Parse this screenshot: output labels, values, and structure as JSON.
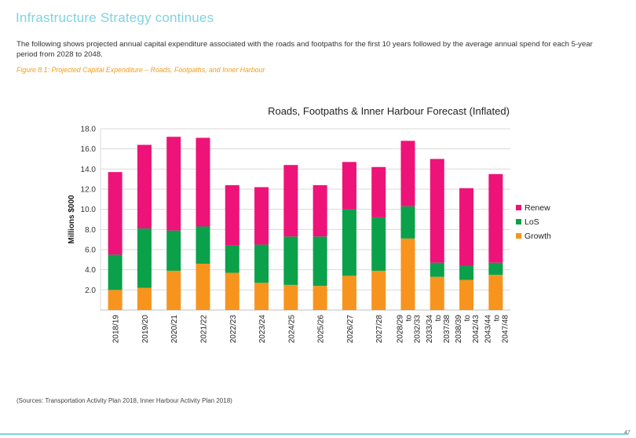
{
  "page": {
    "heading": "Infrastructure Strategy continues",
    "intro": "The following shows projected annual capital expenditure associated with the roads and footpaths for the first 10 years followed by the average annual spend for each 5-year period from 2028 to 2048.",
    "caption": "Figure 8.1:  Projected Capital Expenditure – Roads, Footpaths, and Inner Harbour",
    "sources": "(Sources: Transportation Activity Plan 2018, Inner Harbour Activity Plan 2018)",
    "page_number": "47"
  },
  "chart_data": {
    "type": "bar",
    "stacked": true,
    "title": "Roads, Footpaths & Inner Harbour Forecast (Inflated)",
    "ylabel": "Millions  $000",
    "ylim": [
      0,
      18
    ],
    "yticks": [
      "2.0",
      "4.0",
      "6.0",
      "8.0",
      "10.0",
      "12.0",
      "14.0",
      "16.0",
      "18.0"
    ],
    "grid": true,
    "legend_position": "right",
    "categories": [
      "2018/19",
      "2019/20",
      "2020/21",
      "2021/22",
      "2022/23",
      "2023/24",
      "2024/25",
      "2025/26",
      "2026/27",
      "2027/28",
      "2028/29 to 2032/33",
      "2033/34 to 2037/38",
      "2038/39 to 2042/43",
      "2043/44 to 2047/48"
    ],
    "series": [
      {
        "name": "Growth",
        "color": "#f7941d",
        "values": [
          2.0,
          2.2,
          3.9,
          4.6,
          3.7,
          2.7,
          2.5,
          2.4,
          3.4,
          3.9,
          7.1,
          3.3,
          3.0,
          3.5
        ]
      },
      {
        "name": "LoS",
        "color": "#0aa14a",
        "values": [
          3.5,
          5.9,
          4.0,
          3.7,
          2.7,
          3.8,
          4.8,
          4.9,
          6.6,
          5.3,
          3.2,
          1.4,
          1.4,
          1.2
        ]
      },
      {
        "name": "Renew",
        "color": "#ed1378",
        "values": [
          8.2,
          8.3,
          9.3,
          8.8,
          6.0,
          5.7,
          7.1,
          5.1,
          4.7,
          5.0,
          6.5,
          10.3,
          7.7,
          8.8
        ]
      }
    ],
    "legend_order": [
      "Renew",
      "LoS",
      "Growth"
    ]
  }
}
